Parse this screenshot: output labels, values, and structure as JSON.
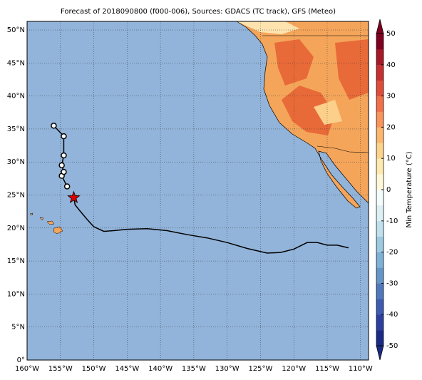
{
  "chart_data": {
    "type": "map",
    "title": "Forecast of 2018090800 (f000-006), Sources: GDACS (TC track), GFS (Meteo)",
    "xlim": [
      -160,
      -108.8
    ],
    "ylim": [
      0,
      51.3
    ],
    "xticks": [
      {
        "value": -160,
        "label": "160°W"
      },
      {
        "value": -155,
        "label": "155°W"
      },
      {
        "value": -150,
        "label": "150°W"
      },
      {
        "value": -145,
        "label": "145°W"
      },
      {
        "value": -140,
        "label": "140°W"
      },
      {
        "value": -135,
        "label": "135°W"
      },
      {
        "value": -130,
        "label": "130°W"
      },
      {
        "value": -125,
        "label": "125°W"
      },
      {
        "value": -120,
        "label": "120°W"
      },
      {
        "value": -115,
        "label": "115°W"
      },
      {
        "value": -110,
        "label": "110°W"
      }
    ],
    "yticks": [
      {
        "value": 0,
        "label": "0°"
      },
      {
        "value": 5,
        "label": "5°N"
      },
      {
        "value": 10,
        "label": "10°N"
      },
      {
        "value": 15,
        "label": "15°N"
      },
      {
        "value": 20,
        "label": "20°N"
      },
      {
        "value": 25,
        "label": "25°N"
      },
      {
        "value": 30,
        "label": "30°N"
      },
      {
        "value": 35,
        "label": "35°N"
      },
      {
        "value": 40,
        "label": "40°N"
      },
      {
        "value": 45,
        "label": "45°N"
      },
      {
        "value": 50,
        "label": "50°N"
      }
    ],
    "grid": true,
    "ocean_color": "#92b4da",
    "track": {
      "color": "#000000",
      "x": [
        -111.8,
        -113.5,
        -115,
        -116.5,
        -118,
        -120,
        -122,
        -124,
        -127,
        -130,
        -133,
        -136,
        -139,
        -142,
        -145,
        -147,
        -148.5,
        -150,
        -151,
        -152,
        -152.8,
        -153
      ],
      "y": [
        17.0,
        17.4,
        17.4,
        17.8,
        17.8,
        16.8,
        16.3,
        16.2,
        16.9,
        17.8,
        18.5,
        19.0,
        19.6,
        19.9,
        19.8,
        19.6,
        19.5,
        20.2,
        21.3,
        22.5,
        23.5,
        24.6
      ]
    },
    "current_position": {
      "x": -153,
      "y": 24.6,
      "color": "#dd0000"
    },
    "forecast_points": {
      "x": [
        -154,
        -154.8,
        -154.5,
        -154.8,
        -154.5,
        -154.5,
        -156
      ],
      "y": [
        26.3,
        27.9,
        28.5,
        29.5,
        31.0,
        33.9,
        35.5
      ]
    },
    "colorbar": {
      "label": "Min Temperature (°C)",
      "lim": [
        -50,
        50
      ],
      "ticks": [
        -50,
        -40,
        -30,
        -20,
        -10,
        0,
        10,
        20,
        30,
        40,
        50
      ],
      "colors": [
        "#1a2a86",
        "#2b3f9e",
        "#3d5bb0",
        "#4f78bd",
        "#6596c8",
        "#7eb1d6",
        "#9ccae1",
        "#bfe0ec",
        "#dcf0f4",
        "#f3fbfb",
        "#fff8d8",
        "#feeab0",
        "#fdd38b",
        "#fcb66e",
        "#f9945a",
        "#f1704a",
        "#e04c3a",
        "#c7302f",
        "#a81826",
        "#800020"
      ]
    }
  }
}
